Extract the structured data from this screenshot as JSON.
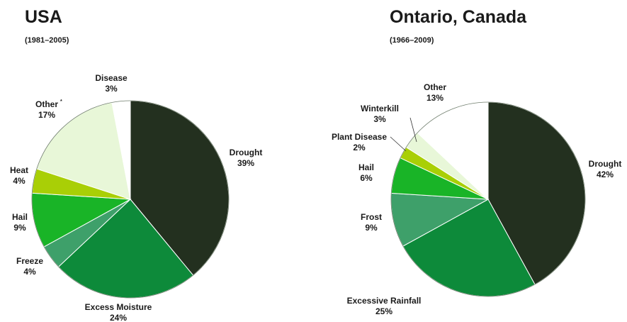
{
  "colors": {
    "drought": "#23301f",
    "excess_moisture": "#0d8a3a",
    "freeze_frost": "#3ea06a",
    "hail": "#19b427",
    "heat_plant_disease": "#a9cf06",
    "other_winterkill": "#e8f7d8",
    "white": "#ffffff",
    "stroke": "#6f7d6c",
    "leader": "#333333"
  },
  "chart_data": [
    {
      "type": "pie",
      "title": "USA",
      "subtitle": "(1981–2005)",
      "start_angle_deg": 0,
      "direction": "clockwise",
      "slices": [
        {
          "label": "Drought",
          "percent_label": "39%",
          "value": 39,
          "color": "#23301f"
        },
        {
          "label": "Excess Moisture",
          "percent_label": "24%",
          "value": 24,
          "color": "#0d8a3a"
        },
        {
          "label": "Freeze",
          "percent_label": "4%",
          "value": 4,
          "color": "#3ea06a"
        },
        {
          "label": "Hail",
          "percent_label": "9%",
          "value": 9,
          "color": "#19b427"
        },
        {
          "label": "Heat",
          "percent_label": "4%",
          "value": 4,
          "color": "#a9cf06"
        },
        {
          "label": "Other",
          "label_superscript": "*",
          "percent_label": "17%",
          "value": 17,
          "color": "#e8f7d8"
        },
        {
          "label": "Disease",
          "percent_label": "3%",
          "value": 3,
          "color": "#ffffff"
        }
      ]
    },
    {
      "type": "pie",
      "title": "Ontario, Canada",
      "subtitle": "(1966–2009)",
      "start_angle_deg": 0,
      "direction": "clockwise",
      "slices": [
        {
          "label": "Drought",
          "percent_label": "42%",
          "value": 42,
          "color": "#23301f"
        },
        {
          "label": "Excessive Rainfall",
          "percent_label": "25%",
          "value": 25,
          "color": "#0d8a3a"
        },
        {
          "label": "Frost",
          "percent_label": "9%",
          "value": 9,
          "color": "#3ea06a"
        },
        {
          "label": "Hail",
          "percent_label": "6%",
          "value": 6,
          "color": "#19b427"
        },
        {
          "label": "Plant Disease",
          "percent_label": "2%",
          "value": 2,
          "color": "#a9cf06"
        },
        {
          "label": "Winterkill",
          "percent_label": "3%",
          "value": 3,
          "color": "#e8f7d8"
        },
        {
          "label": "Other",
          "percent_label": "13%",
          "value": 13,
          "color": "#ffffff"
        }
      ]
    }
  ]
}
